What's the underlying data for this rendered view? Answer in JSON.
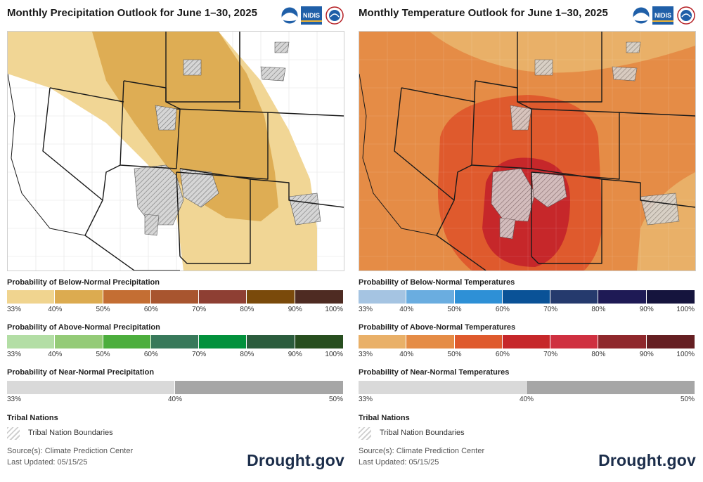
{
  "panels": [
    {
      "title": "Monthly Precipitation Outlook for June 1–30, 2025",
      "logos": {
        "noaa": "NOAA",
        "nidis": "NIDIS"
      },
      "legend": [
        {
          "label": "Probability of Below-Normal Precipitation",
          "colors": [
            "#f0d48f",
            "#dcab50",
            "#c46e33",
            "#a8552f",
            "#8e3f33",
            "#7a4a0b",
            "#4e2b22"
          ],
          "ticks": [
            "33%",
            "40%",
            "50%",
            "60%",
            "70%",
            "80%",
            "90%",
            "100%"
          ]
        },
        {
          "label": "Probability of Above-Normal Precipitation",
          "colors": [
            "#b3dea5",
            "#94cb77",
            "#4cae3d",
            "#38795a",
            "#02913c",
            "#2b5c3d",
            "#274e1f"
          ],
          "ticks": [
            "33%",
            "40%",
            "50%",
            "60%",
            "70%",
            "80%",
            "90%",
            "100%"
          ]
        },
        {
          "label": "Probability of Near-Normal Precipitation",
          "colors": [
            "#d9d9d9",
            "#a6a6a6"
          ],
          "ticks": [
            "33%",
            "40%",
            "50%"
          ]
        }
      ],
      "tribal_heading": "Tribal Nations",
      "tribal_label": "Tribal Nation Boundaries",
      "source": "Source(s): Climate Prediction Center",
      "updated": "Last Updated: 05/15/25",
      "brand": "Drought.gov"
    },
    {
      "title": "Monthly Temperature Outlook for June 1–30, 2025",
      "logos": {
        "noaa": "NOAA",
        "nidis": "NIDIS"
      },
      "legend": [
        {
          "label": "Probability of Below-Normal Temperatures",
          "colors": [
            "#a5c4e2",
            "#6aade0",
            "#2e90d6",
            "#0a5297",
            "#253a6d",
            "#1e1a55",
            "#15143d"
          ],
          "ticks": [
            "33%",
            "40%",
            "50%",
            "60%",
            "70%",
            "80%",
            "90%",
            "100%"
          ]
        },
        {
          "label": "Probability of Above-Normal Temperatures",
          "colors": [
            "#e9b068",
            "#e58c46",
            "#df5a2d",
            "#c6272a",
            "#cf3040",
            "#8f282c",
            "#651f22"
          ],
          "ticks": [
            "33%",
            "40%",
            "50%",
            "60%",
            "70%",
            "80%",
            "90%",
            "100%"
          ]
        },
        {
          "label": "Probability of Near-Normal Temperatures",
          "colors": [
            "#d9d9d9",
            "#a6a6a6"
          ],
          "ticks": [
            "33%",
            "40%",
            "50%"
          ]
        }
      ],
      "tribal_heading": "Tribal Nations",
      "tribal_label": "Tribal Nation Boundaries",
      "source": "Source(s): Climate Prediction Center",
      "updated": "Last Updated: 05/15/25",
      "brand": "Drought.gov"
    }
  ]
}
